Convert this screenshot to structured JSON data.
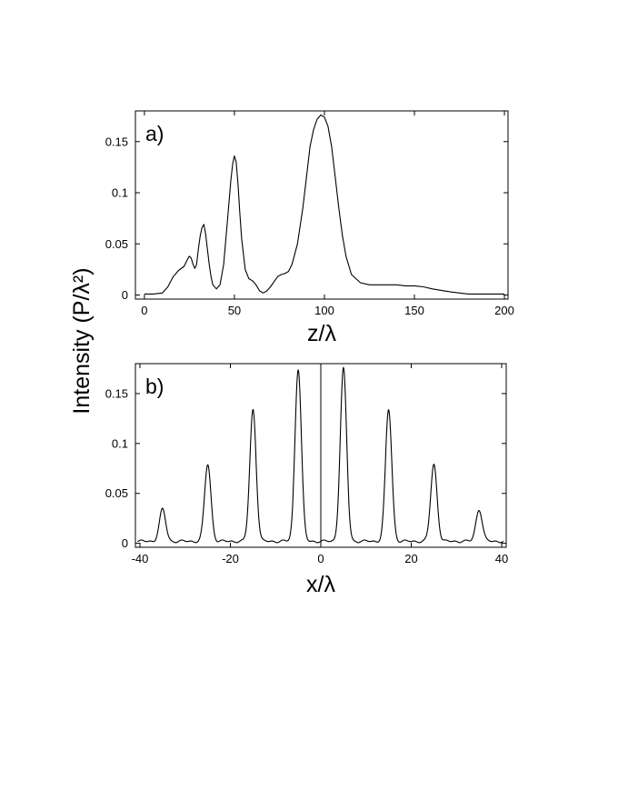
{
  "figure": {
    "shared_ylabel": "Intensity (P/λ²)"
  },
  "chart_data": [
    {
      "type": "line",
      "panel_label": "a)",
      "xlabel": "z/λ",
      "ylabel": "Intensity (P/λ²)",
      "xlim": [
        -5,
        202
      ],
      "ylim": [
        -0.004,
        0.18
      ],
      "xticks": [
        0,
        50,
        100,
        150,
        200
      ],
      "xtick_labels": [
        "0",
        "50",
        "100",
        "150",
        "200"
      ],
      "yticks": [
        0,
        0.05,
        0.1,
        0.15
      ],
      "ytick_labels": [
        "0",
        "0.05",
        "0.1",
        "0.15"
      ],
      "grid": false,
      "series": [
        {
          "x": [
            0,
            5,
            10,
            13,
            16,
            19,
            22,
            24,
            25,
            26,
            27,
            28,
            29,
            30,
            31,
            32,
            33,
            34,
            35,
            36,
            37,
            38,
            40,
            42,
            44,
            46,
            48,
            49,
            50,
            51,
            52,
            53,
            54,
            56,
            58,
            60,
            62,
            64,
            66,
            68,
            70,
            72,
            74,
            76,
            78,
            80,
            82,
            85,
            88,
            90,
            92,
            94,
            96,
            98,
            100,
            102,
            104,
            106,
            108,
            110,
            112,
            115,
            120,
            125,
            130,
            135,
            140,
            145,
            150,
            155,
            160,
            170,
            180,
            190,
            200
          ],
          "y": [
            0.001,
            0.001,
            0.002,
            0.008,
            0.018,
            0.024,
            0.028,
            0.035,
            0.038,
            0.036,
            0.03,
            0.026,
            0.03,
            0.045,
            0.058,
            0.066,
            0.069,
            0.06,
            0.045,
            0.03,
            0.018,
            0.01,
            0.006,
            0.01,
            0.03,
            0.07,
            0.112,
            0.128,
            0.136,
            0.13,
            0.108,
            0.08,
            0.055,
            0.025,
            0.016,
            0.014,
            0.01,
            0.004,
            0.002,
            0.004,
            0.008,
            0.013,
            0.018,
            0.02,
            0.021,
            0.023,
            0.03,
            0.05,
            0.085,
            0.115,
            0.145,
            0.162,
            0.172,
            0.176,
            0.174,
            0.165,
            0.145,
            0.115,
            0.085,
            0.058,
            0.038,
            0.02,
            0.012,
            0.01,
            0.01,
            0.01,
            0.01,
            0.009,
            0.009,
            0.008,
            0.006,
            0.003,
            0.001,
            0.001,
            0.001
          ]
        }
      ]
    },
    {
      "type": "line",
      "panel_label": "b)",
      "xlabel": "x/λ",
      "ylabel": "Intensity (P/λ²)",
      "xlim": [
        -41,
        41
      ],
      "ylim": [
        -0.004,
        0.18
      ],
      "xticks": [
        -40,
        -20,
        0,
        20,
        40
      ],
      "xtick_labels": [
        "-40",
        "-20",
        "0",
        "20",
        "40"
      ],
      "yticks": [
        0,
        0.05,
        0.1,
        0.15
      ],
      "ytick_labels": [
        "0",
        "0.05",
        "0.1",
        "0.15"
      ],
      "grid": false,
      "center_line_x": 0,
      "peaks": [
        {
          "x": -35,
          "y": 0.034
        },
        {
          "x": -25,
          "y": 0.079
        },
        {
          "x": -15,
          "y": 0.134
        },
        {
          "x": -5,
          "y": 0.175
        },
        {
          "x": 5,
          "y": 0.175
        },
        {
          "x": 15,
          "y": 0.134
        },
        {
          "x": 25,
          "y": 0.079
        },
        {
          "x": 35,
          "y": 0.034
        }
      ],
      "peak_width": 0.7,
      "baseline": 0.002
    }
  ]
}
